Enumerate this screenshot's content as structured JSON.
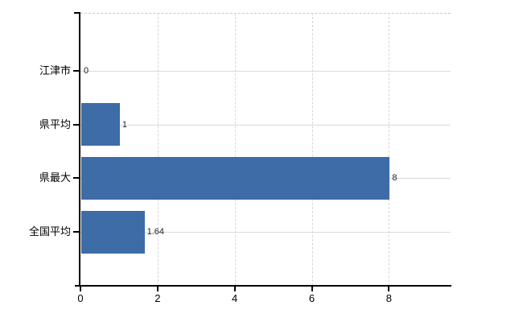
{
  "chart_data": {
    "type": "bar",
    "orientation": "horizontal",
    "title": "",
    "xlabel": "",
    "ylabel": "",
    "categories": [
      "江津市",
      "県平均",
      "県最大",
      "全国平均"
    ],
    "values": [
      0,
      1,
      8,
      1.64
    ],
    "value_labels": [
      "0",
      "1",
      "8",
      "1.64"
    ],
    "xticks": [
      0,
      2,
      4,
      6,
      8
    ],
    "xtick_labels": [
      "0",
      "2",
      "4",
      "6",
      "8"
    ],
    "xlim": [
      0,
      9.6
    ],
    "grid": true,
    "legend": "none",
    "colors": {
      "bar": "#3d6ca7",
      "axis": "#000000",
      "grid_horizontal": "#d4ddd4",
      "grid_vertical": "#d7d7dc",
      "top_border": "#c9c9c9",
      "value_label_text": "#222222",
      "tick_label_text": "#000000",
      "background": "#ffffff"
    }
  }
}
